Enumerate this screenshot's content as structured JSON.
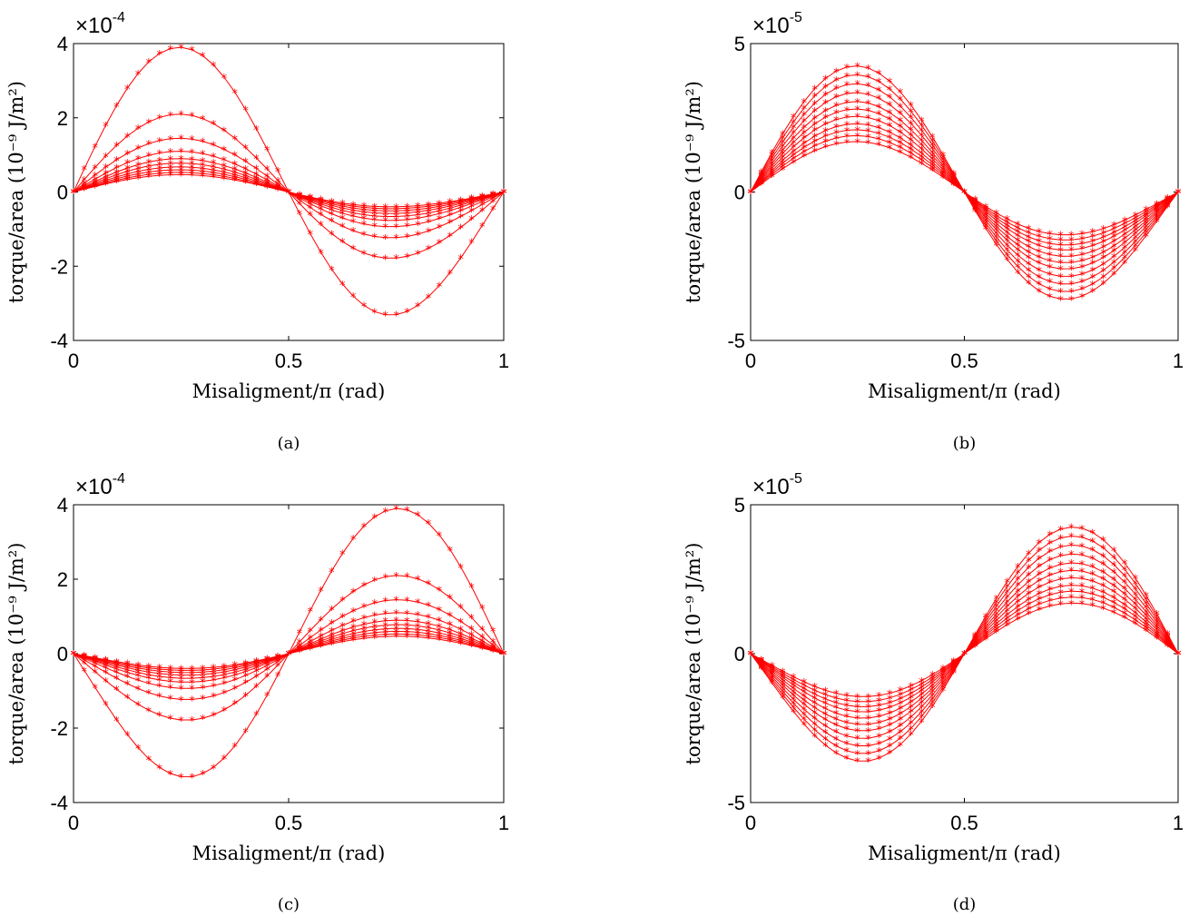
{
  "chart_data": [
    {
      "type": "line",
      "caption": "(a)",
      "xlabel": "Misaligment/π (rad)",
      "ylabel": "torque/area (10⁻⁹ J/m²)",
      "exponent_label": {
        "base": "×10",
        "power": "-4"
      },
      "xlim": [
        0,
        1
      ],
      "ylim": [
        -4,
        4
      ],
      "x_ticks": [
        "0",
        "0.5",
        "1"
      ],
      "y_ticks": [
        "-4",
        "-2",
        "0",
        "2",
        "4"
      ],
      "y_tick_values": [
        -4,
        -2,
        0,
        2,
        4
      ],
      "grid": false,
      "marker": "asterisk",
      "color": "#ff0000",
      "curve_shape": "sin(2πx)·cos(πx/4)",
      "series_amplitudes": [
        3.9,
        2.1,
        1.45,
        1.1,
        0.9,
        0.78,
        0.68,
        0.6,
        0.53,
        0.47
      ]
    },
    {
      "type": "line",
      "caption": "(b)",
      "xlabel": "Misaligment/π (rad)",
      "ylabel": "torque/area (10⁻⁹ J/m²)",
      "exponent_label": {
        "base": "×10",
        "power": "-5"
      },
      "xlim": [
        0,
        1
      ],
      "ylim": [
        -5,
        5
      ],
      "x_ticks": [
        "0",
        "0.5",
        "1"
      ],
      "y_ticks": [
        "-5",
        "0",
        "5"
      ],
      "y_tick_values": [
        -5,
        0,
        5
      ],
      "grid": false,
      "marker": "asterisk",
      "color": "#ff0000",
      "curve_shape": "sin(2πx)·cos(πx/4)",
      "series_amplitudes": [
        4.25,
        3.95,
        3.65,
        3.35,
        3.05,
        2.8,
        2.55,
        2.3,
        2.1,
        1.9,
        1.7
      ]
    },
    {
      "type": "line",
      "caption": "(c)",
      "xlabel": "Misaligment/π (rad)",
      "ylabel": "torque/area (10⁻⁹ J/m²)",
      "exponent_label": {
        "base": "×10",
        "power": "-4"
      },
      "xlim": [
        0,
        1
      ],
      "ylim": [
        -4,
        4
      ],
      "x_ticks": [
        "0",
        "0.5",
        "1"
      ],
      "y_ticks": [
        "-4",
        "-2",
        "0",
        "2",
        "4"
      ],
      "y_tick_values": [
        -4,
        -2,
        0,
        2,
        4
      ],
      "grid": false,
      "marker": "asterisk",
      "color": "#ff0000",
      "curve_shape": "-sin(2πx)·cos(π(1-x)/4)",
      "series_amplitudes": [
        3.9,
        2.1,
        1.45,
        1.1,
        0.9,
        0.78,
        0.68,
        0.6,
        0.53,
        0.47
      ]
    },
    {
      "type": "line",
      "caption": "(d)",
      "xlabel": "Misaligment/π (rad)",
      "ylabel": "torque/area (10⁻⁹ J/m²)",
      "exponent_label": {
        "base": "×10",
        "power": "-5"
      },
      "xlim": [
        0,
        1
      ],
      "ylim": [
        -5,
        5
      ],
      "x_ticks": [
        "0",
        "0.5",
        "1"
      ],
      "y_ticks": [
        "-5",
        "0",
        "5"
      ],
      "y_tick_values": [
        -5,
        0,
        5
      ],
      "grid": false,
      "marker": "asterisk",
      "color": "#ff0000",
      "curve_shape": "-sin(2πx)·cos(π(1-x)/4)",
      "series_amplitudes": [
        4.25,
        3.95,
        3.65,
        3.35,
        3.05,
        2.8,
        2.55,
        2.3,
        2.1,
        1.9,
        1.7
      ]
    }
  ]
}
